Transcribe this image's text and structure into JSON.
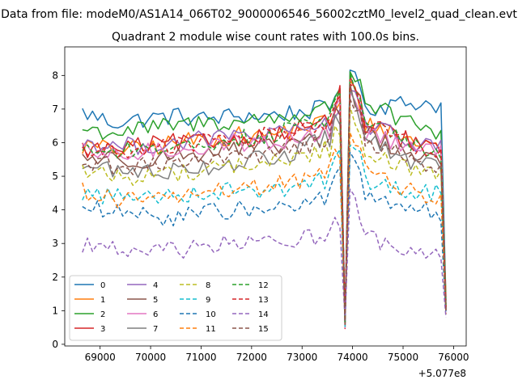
{
  "suptitle": "Data from file: modeM0/AS1A14_066T02_9000006546_56002cztM0_level2_quad_clean.evt",
  "chart_data": {
    "type": "line",
    "title": "Quadrant 2 module wise count rates with 100.0s bins.",
    "xlabel": "",
    "ylabel": "",
    "x_offset_label": "+5.077e8",
    "x_offset": 507700000,
    "xlim": [
      68300,
      76250
    ],
    "ylim": [
      -0.05,
      8.85
    ],
    "xticks": [
      69000,
      70000,
      71000,
      72000,
      73000,
      74000,
      75000,
      76000
    ],
    "xtick_labels": [
      "69000",
      "70000",
      "71000",
      "72000",
      "73000",
      "74000",
      "75000",
      "76000"
    ],
    "yticks": [
      0,
      1,
      2,
      3,
      4,
      5,
      6,
      7,
      8
    ],
    "ytick_labels": [
      "0",
      "1",
      "2",
      "3",
      "4",
      "5",
      "6",
      "7",
      "8"
    ],
    "grid": false,
    "legend": {
      "placement": "lower-left",
      "columns": 4
    },
    "x_start": 68650,
    "x_step": 100,
    "dip_at": 73850,
    "series": [
      {
        "name": "0",
        "color": "#1f77b4",
        "dashed": false,
        "base": [
          6.9,
          6.6,
          6.7,
          6.8,
          6.7,
          6.8,
          6.8,
          6.9,
          7.0,
          7.0,
          7.1,
          7.2,
          7.1
        ],
        "end": 1.3
      },
      {
        "name": "1",
        "color": "#ff7f0e",
        "dashed": false,
        "base": [
          5.9,
          5.8,
          5.8,
          6.0,
          6.1,
          6.2,
          6.2,
          6.4,
          6.6,
          6.6,
          6.4,
          6.0,
          5.9
        ],
        "end": 1.4
      },
      {
        "name": "2",
        "color": "#2ca02c",
        "dashed": false,
        "base": [
          6.4,
          6.3,
          6.4,
          6.5,
          6.6,
          6.6,
          6.7,
          6.8,
          7.0,
          7.1,
          6.9,
          6.5,
          6.2
        ],
        "end": 1.2
      },
      {
        "name": "3",
        "color": "#d62728",
        "dashed": false,
        "base": [
          5.8,
          5.8,
          5.9,
          6.0,
          6.0,
          6.1,
          6.2,
          6.4,
          6.6,
          6.7,
          6.3,
          6.0,
          5.8
        ],
        "end": 1.1
      },
      {
        "name": "4",
        "color": "#9467bd",
        "dashed": false,
        "base": [
          6.0,
          5.9,
          5.9,
          6.0,
          6.1,
          6.2,
          6.2,
          6.3,
          6.5,
          6.5,
          6.3,
          6.0,
          5.9
        ],
        "end": 1.0
      },
      {
        "name": "5",
        "color": "#8c564b",
        "dashed": false,
        "base": [
          5.6,
          5.5,
          5.5,
          5.6,
          5.7,
          5.8,
          5.8,
          6.0,
          6.3,
          6.4,
          6.0,
          5.6,
          5.4
        ],
        "end": 1.1
      },
      {
        "name": "6",
        "color": "#e377c2",
        "dashed": false,
        "base": [
          5.7,
          5.6,
          5.7,
          5.8,
          5.9,
          6.0,
          6.0,
          6.1,
          6.3,
          6.4,
          6.1,
          5.8,
          5.7
        ],
        "end": 1.0
      },
      {
        "name": "7",
        "color": "#7f7f7f",
        "dashed": false,
        "base": [
          5.3,
          5.2,
          5.1,
          5.2,
          5.3,
          5.4,
          5.5,
          5.7,
          6.1,
          6.2,
          5.8,
          5.4,
          5.2
        ],
        "end": 1.0
      },
      {
        "name": "8",
        "color": "#bcbd22",
        "dashed": true,
        "base": [
          5.2,
          5.0,
          5.0,
          5.1,
          5.2,
          5.3,
          5.4,
          5.5,
          5.8,
          5.9,
          5.5,
          5.1,
          4.9
        ],
        "end": 1.0
      },
      {
        "name": "9",
        "color": "#17becf",
        "dashed": true,
        "base": [
          4.5,
          4.4,
          4.4,
          4.5,
          4.5,
          4.6,
          4.6,
          4.7,
          4.9,
          5.0,
          4.7,
          4.5,
          4.5
        ],
        "end": 0.9
      },
      {
        "name": "10",
        "color": "#1f77b4",
        "dashed": true,
        "base": [
          4.1,
          3.9,
          3.8,
          3.8,
          3.9,
          4.0,
          4.0,
          4.1,
          4.4,
          4.5,
          4.2,
          4.0,
          3.9
        ],
        "end": 0.9
      },
      {
        "name": "11",
        "color": "#ff7f0e",
        "dashed": true,
        "base": [
          4.6,
          4.3,
          4.3,
          4.4,
          4.5,
          4.6,
          4.7,
          4.8,
          5.2,
          5.3,
          4.9,
          4.5,
          4.4
        ],
        "end": 0.9
      },
      {
        "name": "12",
        "color": "#2ca02c",
        "dashed": true,
        "base": [
          5.9,
          5.7,
          5.8,
          5.9,
          6.0,
          6.1,
          6.2,
          6.4,
          6.7,
          6.8,
          6.3,
          5.9,
          5.7
        ],
        "end": 1.1
      },
      {
        "name": "13",
        "color": "#d62728",
        "dashed": true,
        "base": [
          5.8,
          5.7,
          5.8,
          5.9,
          6.0,
          6.1,
          6.2,
          6.3,
          6.6,
          6.7,
          6.3,
          5.9,
          5.7
        ],
        "end": 1.0
      },
      {
        "name": "14",
        "color": "#9467bd",
        "dashed": true,
        "base": [
          3.0,
          2.8,
          2.7,
          2.8,
          2.9,
          3.0,
          3.0,
          3.1,
          3.3,
          3.3,
          3.0,
          2.8,
          2.7
        ],
        "end": 0.8
      },
      {
        "name": "15",
        "color": "#8c564b",
        "dashed": true,
        "base": [
          5.4,
          5.3,
          5.3,
          5.4,
          5.5,
          5.6,
          5.6,
          5.8,
          6.1,
          6.2,
          5.8,
          5.4,
          5.2
        ],
        "end": 1.0
      }
    ]
  }
}
